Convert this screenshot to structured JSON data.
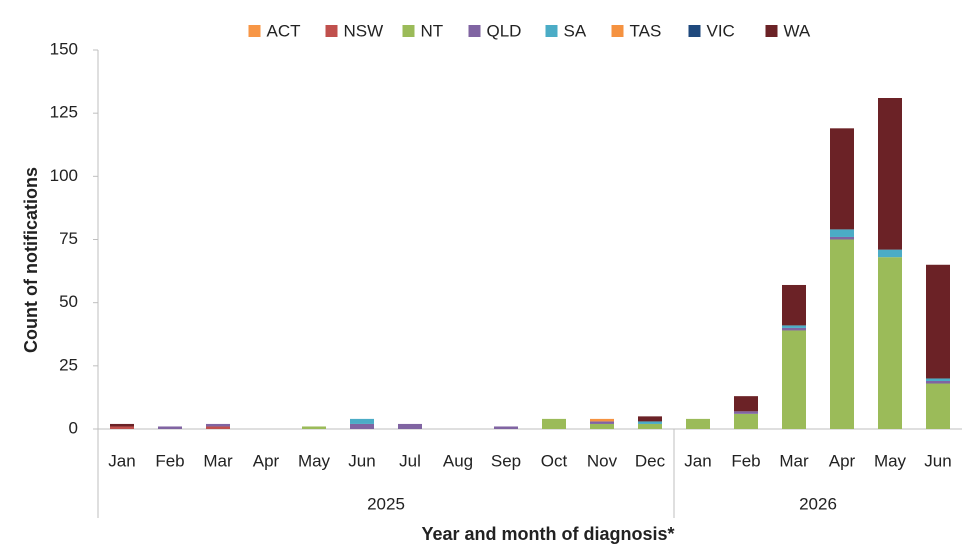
{
  "chart_data": {
    "type": "stacked_bar",
    "y_label": "Count of notifications",
    "x_label": "Year and month of diagnosis*",
    "groups": [
      {
        "name": "2025",
        "categories": [
          "Jan",
          "Feb",
          "Mar",
          "Apr",
          "May",
          "Jun",
          "Jul",
          "Aug",
          "Sep",
          "Oct",
          "Nov",
          "Dec"
        ]
      },
      {
        "name": "2026",
        "categories": [
          "Jan",
          "Feb",
          "Mar",
          "Apr",
          "May",
          "Jun"
        ]
      }
    ],
    "series": [
      {
        "name": "ACT",
        "color": "#f79646",
        "values": [
          0,
          0,
          0,
          0,
          0,
          0,
          0,
          0,
          0,
          0,
          0,
          0,
          0,
          0,
          0,
          0,
          0,
          0
        ]
      },
      {
        "name": "NSW",
        "color": "#c0504d",
        "values": [
          1,
          0,
          1,
          0,
          0,
          0,
          0,
          0,
          0,
          0,
          0,
          0,
          0,
          0,
          0,
          0,
          0,
          0
        ]
      },
      {
        "name": "NT",
        "color": "#9bbb59",
        "values": [
          0,
          0,
          0,
          0,
          1,
          0,
          0,
          0,
          0,
          4,
          2,
          2,
          4,
          6,
          39,
          75,
          68,
          18
        ]
      },
      {
        "name": "QLD",
        "color": "#8064a2",
        "values": [
          0,
          1,
          1,
          0,
          0,
          2,
          2,
          0,
          1,
          0,
          1,
          0,
          0,
          1,
          1,
          1,
          0,
          1
        ]
      },
      {
        "name": "SA",
        "color": "#4bacc6",
        "values": [
          0,
          0,
          0,
          0,
          0,
          2,
          0,
          0,
          0,
          0,
          0,
          1,
          0,
          0,
          1,
          3,
          3,
          1
        ]
      },
      {
        "name": "TAS",
        "color": "#f59240",
        "values": [
          0,
          0,
          0,
          0,
          0,
          0,
          0,
          0,
          0,
          0,
          1,
          0,
          0,
          0,
          0,
          0,
          0,
          0
        ]
      },
      {
        "name": "VIC",
        "color": "#1f497d",
        "values": [
          0,
          0,
          0,
          0,
          0,
          0,
          0,
          0,
          0,
          0,
          0,
          0,
          0,
          0,
          0,
          0,
          0,
          0
        ]
      },
      {
        "name": "WA",
        "color": "#6b2226",
        "values": [
          1,
          0,
          0,
          0,
          0,
          0,
          0,
          0,
          0,
          0,
          0,
          2,
          0,
          6,
          16,
          40,
          60,
          45
        ]
      }
    ],
    "ylim": [
      0,
      150
    ],
    "yticks": [
      0,
      25,
      50,
      75,
      100,
      125,
      150
    ],
    "legend": "top"
  }
}
